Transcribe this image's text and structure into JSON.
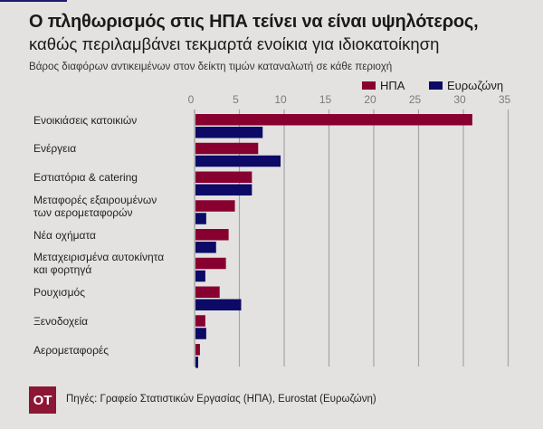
{
  "header": {
    "title": "Ο πληθωρισμός στις ΗΠΑ τείνει να είναι υψηλότερος,",
    "subtitle": "καθώς περιλαμβάνει τεκμαρτά ενοίκια για ιδιοκατοίκηση",
    "caption": "Βάρος διαφόρων αντικειμένων στον δείκτη τιμών καταναλωτή σε κάθε περιοχή"
  },
  "colors": {
    "us": "#880030",
    "ez": "#0c0a66",
    "grid": "#a5a5a5",
    "background": "#e3e2e0"
  },
  "chart_data": {
    "type": "bar",
    "orientation": "horizontal",
    "title": "Βάρος διαφόρων αντικειμένων στον δείκτη τιμών καταναλωτή σε κάθε περιοχή",
    "xlabel": "",
    "ylabel": "",
    "xlim": [
      0,
      35
    ],
    "xticks": [
      0,
      5,
      10,
      15,
      20,
      25,
      30,
      35
    ],
    "grid": true,
    "legend_position": "top-right",
    "categories": [
      "Ενοικιάσεις κατοικιών",
      "Ενέργεια",
      "Εστιατόρια & catering",
      "Μεταφορές εξαιρουμένων των αερομεταφορών",
      "Νέα οχήματα",
      "Μεταχειρισμένα αυτοκίνητα και φορτηγά",
      "Ρουχισμός",
      "Ξενοδοχεία",
      "Αερομεταφορές"
    ],
    "category_lines": [
      [
        "Ενοικιάσεις κατοικιών"
      ],
      [
        "Ενέργεια"
      ],
      [
        "Εστιατόρια & catering"
      ],
      [
        "Μεταφορές εξαιρουμένων",
        "των αερομεταφορών"
      ],
      [
        "Νέα οχήματα"
      ],
      [
        "Μεταχειρισμένα αυτοκίνητα",
        "και φορτηγά"
      ],
      [
        "Ρουχισμός"
      ],
      [
        "Ξενοδοχεία"
      ],
      [
        "Αερομεταφορές"
      ]
    ],
    "series": [
      {
        "name": "ΗΠΑ",
        "key": "us",
        "values": [
          31.0,
          7.1,
          6.4,
          4.5,
          3.8,
          3.5,
          2.8,
          1.2,
          0.6
        ]
      },
      {
        "name": "Ευρωζώνη",
        "key": "ez",
        "values": [
          7.6,
          9.6,
          6.4,
          1.3,
          2.4,
          1.2,
          5.2,
          1.3,
          0.4
        ]
      }
    ]
  },
  "footer": {
    "logo": "ΟΤ",
    "source": "Πηγές: Γραφείο Στατιστικών Εργασίας (ΗΠΑ), Eurostat (Ευρωζώνη)"
  }
}
